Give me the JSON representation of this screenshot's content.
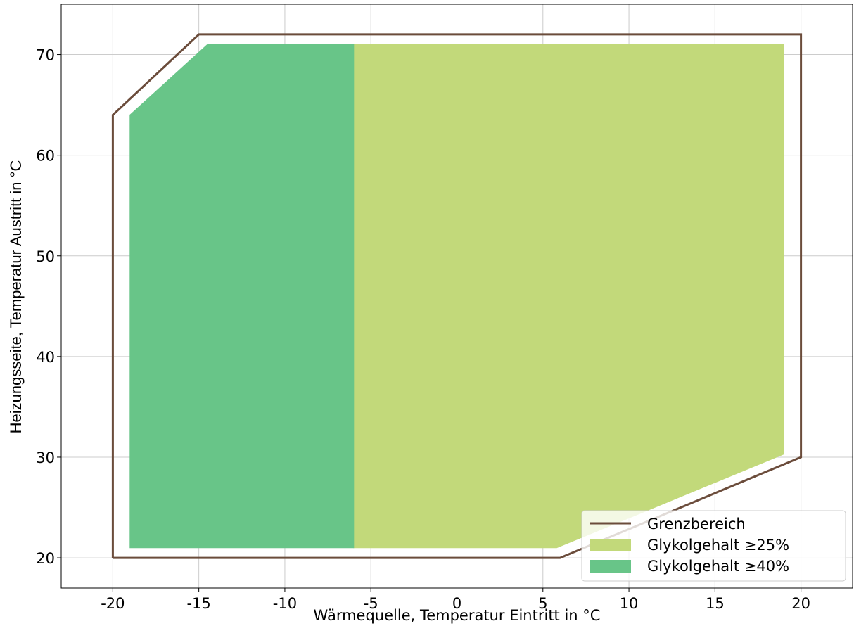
{
  "chart_data": {
    "type": "area",
    "title": "",
    "xlabel": "Wärmequelle, Temperatur Eintritt in °C",
    "ylabel": "Heizungsseite, Temperatur Austritt in °C",
    "xlim": [
      -23,
      23
    ],
    "ylim": [
      17,
      75
    ],
    "xticks": [
      -20,
      -15,
      -10,
      -5,
      0,
      5,
      10,
      15,
      20
    ],
    "yticks": [
      20,
      30,
      40,
      50,
      60,
      70
    ],
    "xtick_labels": [
      "-20",
      "-15",
      "-10",
      "-5",
      "0",
      "5",
      "10",
      "15",
      "20"
    ],
    "ytick_labels": [
      "20",
      "30",
      "40",
      "50",
      "60",
      "70"
    ],
    "grid": true,
    "legend_position": "lower-right",
    "series": [
      {
        "name": "Grenzbereich",
        "kind": "line",
        "color": "#6b4c3b",
        "points": [
          [
            -20,
            20
          ],
          [
            -20,
            64
          ],
          [
            -15,
            72
          ],
          [
            20,
            72
          ],
          [
            20,
            30
          ],
          [
            6,
            20
          ],
          [
            -20,
            20
          ]
        ]
      },
      {
        "name": "Glykolgehalt ≥25%",
        "kind": "fill",
        "color": "#c2d97a",
        "points": [
          [
            -6,
            21
          ],
          [
            -6,
            71
          ],
          [
            19,
            71
          ],
          [
            19,
            30.3
          ],
          [
            5.8,
            21
          ]
        ]
      },
      {
        "name": "Glykolgehalt ≥40%",
        "kind": "fill",
        "color": "#68c588",
        "points": [
          [
            -19,
            21
          ],
          [
            -19,
            64
          ],
          [
            -14.5,
            71
          ],
          [
            -6,
            71
          ],
          [
            -6,
            21
          ]
        ]
      }
    ]
  }
}
